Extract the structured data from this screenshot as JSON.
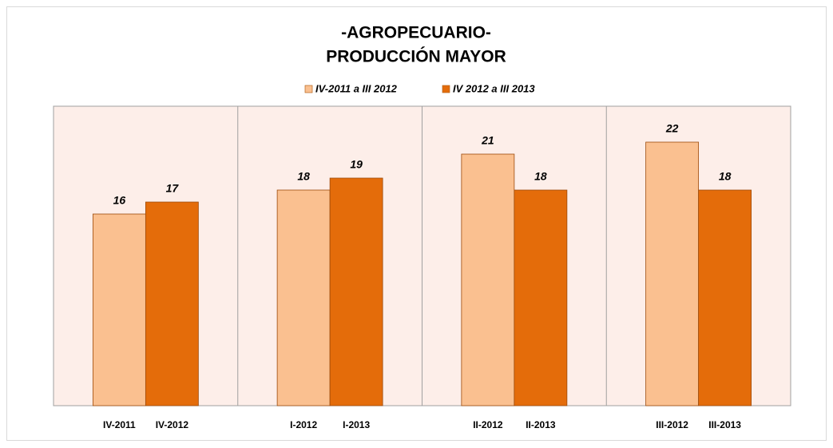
{
  "chart_data": {
    "type": "bar",
    "title": "-AGROPECUARIO-",
    "subtitle": "PRODUCCIÓN MAYOR",
    "series": [
      {
        "name": "IV-2011 a III 2012",
        "color": "#fac090",
        "labels": [
          "IV-2011",
          "I-2012",
          "II-2012",
          "III-2012"
        ],
        "values": [
          16,
          18,
          21,
          22
        ]
      },
      {
        "name": "IV 2012 a III 2013",
        "color": "#e46c0a",
        "labels": [
          "IV-2012",
          "I-2013",
          "II-2013",
          "III-2013"
        ],
        "values": [
          17,
          19,
          18,
          18
        ]
      }
    ],
    "ylim": [
      0,
      25
    ],
    "legend": "top"
  }
}
